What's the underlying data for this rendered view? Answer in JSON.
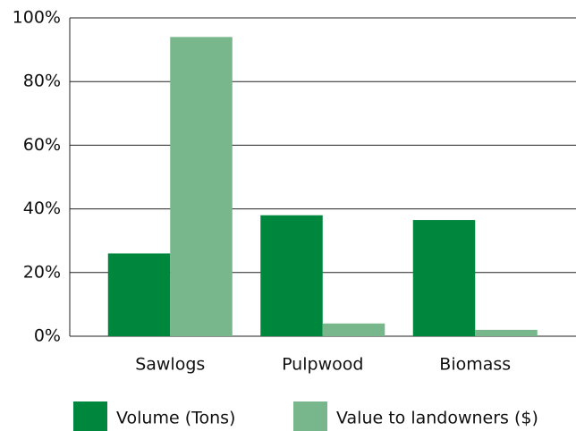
{
  "chart_data": {
    "type": "bar",
    "categories": [
      "Sawlogs",
      "Pulpwood",
      "Biomass"
    ],
    "series": [
      {
        "name": "Volume (Tons)",
        "color": "#00873e",
        "values": [
          26,
          38,
          36.5
        ]
      },
      {
        "name": "Value to landowners ($)",
        "color": "#78b78b",
        "values": [
          94,
          4,
          2
        ]
      }
    ],
    "ylim": [
      0,
      100
    ],
    "yticks": [
      {
        "value": 0,
        "label": "0%"
      },
      {
        "value": 20,
        "label": "20%"
      },
      {
        "value": 40,
        "label": "40%"
      },
      {
        "value": 60,
        "label": "60%"
      },
      {
        "value": 80,
        "label": "80%"
      },
      {
        "value": 100,
        "label": "100%"
      }
    ],
    "grid": true,
    "legend": "bottom"
  }
}
